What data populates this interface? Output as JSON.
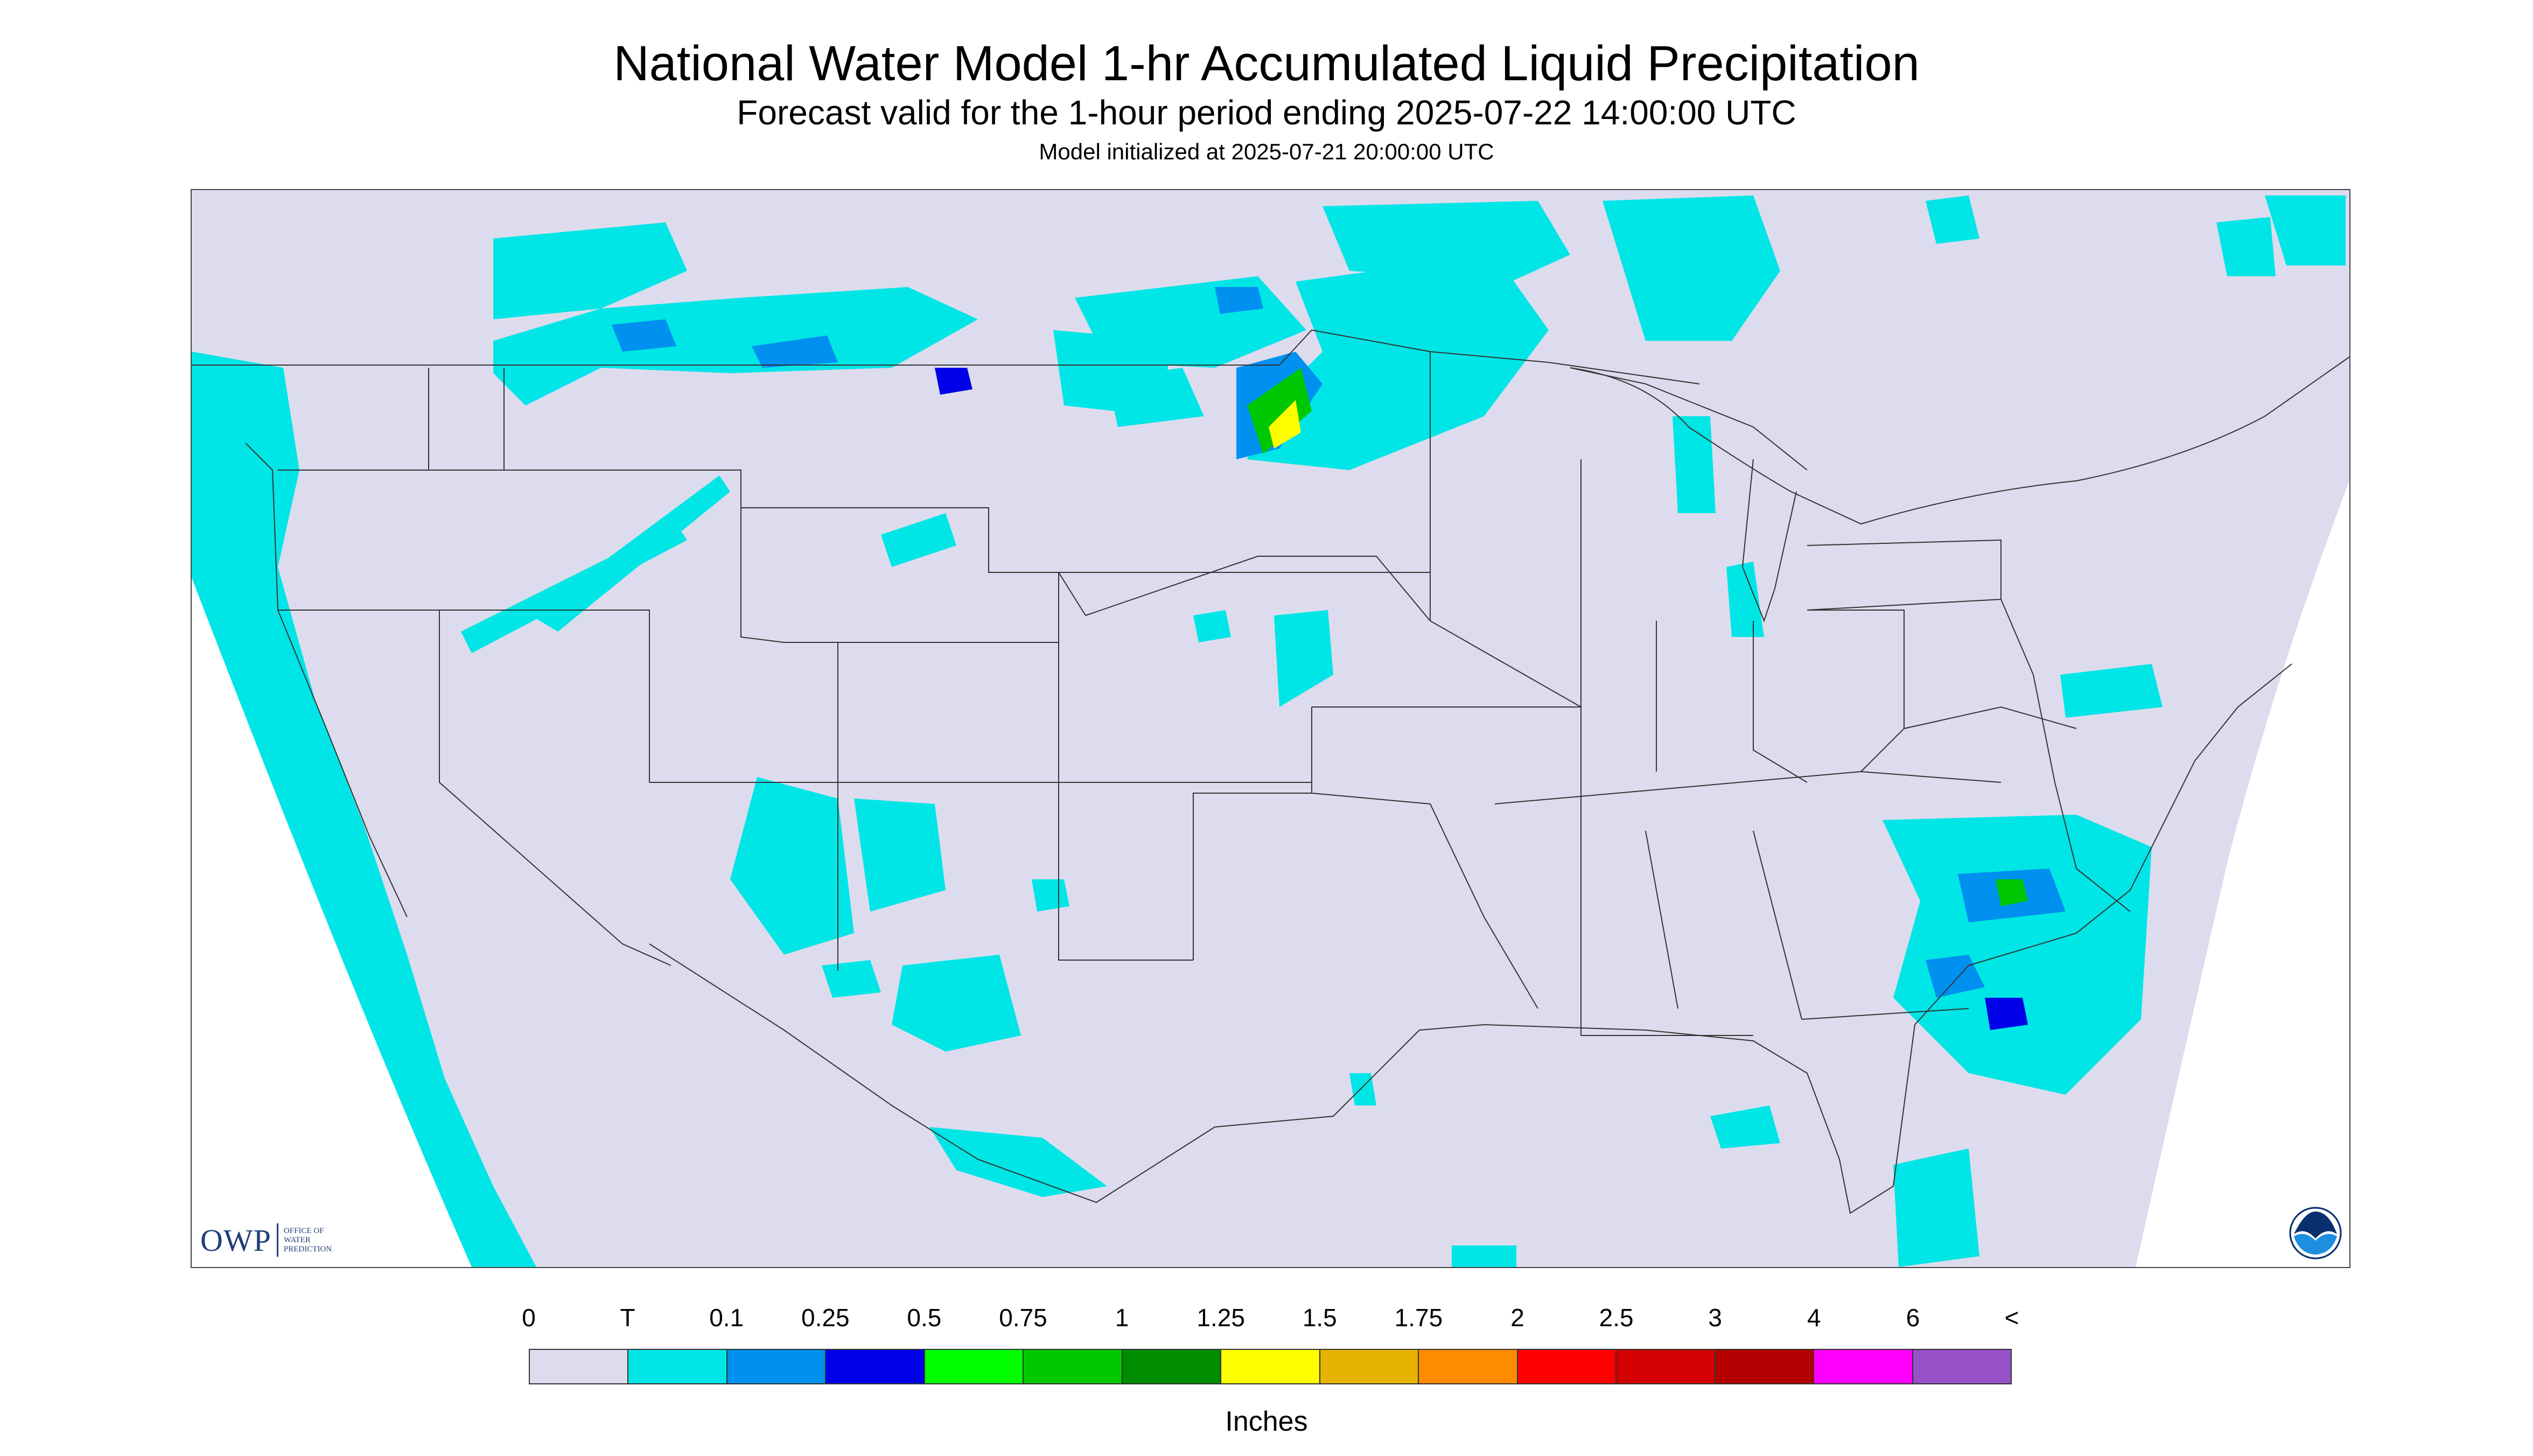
{
  "title": "National Water Model 1-hr Accumulated Liquid Precipitation",
  "subtitle": "Forecast valid for the 1-hour period ending 2025-07-22 14:00:00 UTC",
  "init_line": "Model initialized at 2025-07-21 20:00:00 UTC",
  "logo": {
    "big": "OWP",
    "small": "OFFICE OF WATER PREDICTION"
  },
  "legend": {
    "units": "Inches",
    "ticks": [
      "0",
      "T",
      "0.1",
      "0.25",
      "0.5",
      "0.75",
      "1",
      "1.25",
      "1.5",
      "1.75",
      "2",
      "2.5",
      "3",
      "4",
      "6",
      "<"
    ],
    "colors": [
      "#dcdcee",
      "#00e5e5",
      "#0090f0",
      "#0000e8",
      "#00ff00",
      "#00c800",
      "#008c00",
      "#ffff00",
      "#e6b400",
      "#ff8c00",
      "#ff0000",
      "#d20000",
      "#b40000",
      "#ff00ff",
      "#9650c8"
    ]
  },
  "icons": {
    "noaa": "noaa-logo-icon"
  }
}
